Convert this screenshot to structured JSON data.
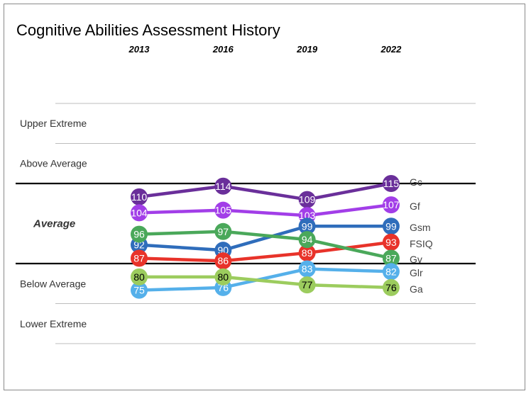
{
  "chart_data": {
    "type": "line",
    "title": "Cognitive Abilities Assessment History",
    "categories": [
      "2013",
      "2016",
      "2019",
      "2022"
    ],
    "ylim": [
      55,
      145
    ],
    "bands": [
      {
        "label": "Upper Extreme",
        "from": 130,
        "to": 145
      },
      {
        "label": "Above Average",
        "from": 115,
        "to": 130
      },
      {
        "label": "Average",
        "from": 85,
        "to": 115
      },
      {
        "label": "Below Average",
        "from": 70,
        "to": 85
      },
      {
        "label": "Lower Extreme",
        "from": 55,
        "to": 70
      }
    ],
    "series": [
      {
        "name": "Gc",
        "color": "#6a2f9a",
        "text": "#ffffff",
        "values": [
          110,
          114,
          109,
          115
        ]
      },
      {
        "name": "Gf",
        "color": "#a23ee8",
        "text": "#ffffff",
        "values": [
          104,
          105,
          103,
          107
        ]
      },
      {
        "name": "Gsm",
        "color": "#2f6dbb",
        "text": "#ffffff",
        "values": [
          92,
          90,
          99,
          99
        ]
      },
      {
        "name": "FSIQ",
        "color": "#e8332a",
        "text": "#ffffff",
        "values": [
          87,
          86,
          89,
          93
        ]
      },
      {
        "name": "Gv",
        "color": "#4aa85a",
        "text": "#ffffff",
        "values": [
          96,
          97,
          94,
          87
        ]
      },
      {
        "name": "Glr",
        "color": "#55b0ea",
        "text": "#ffffff",
        "values": [
          75,
          76,
          83,
          82
        ]
      },
      {
        "name": "Ga",
        "color": "#9ccc5e",
        "text": "#000000",
        "values": [
          80,
          80,
          77,
          76
        ]
      }
    ]
  }
}
